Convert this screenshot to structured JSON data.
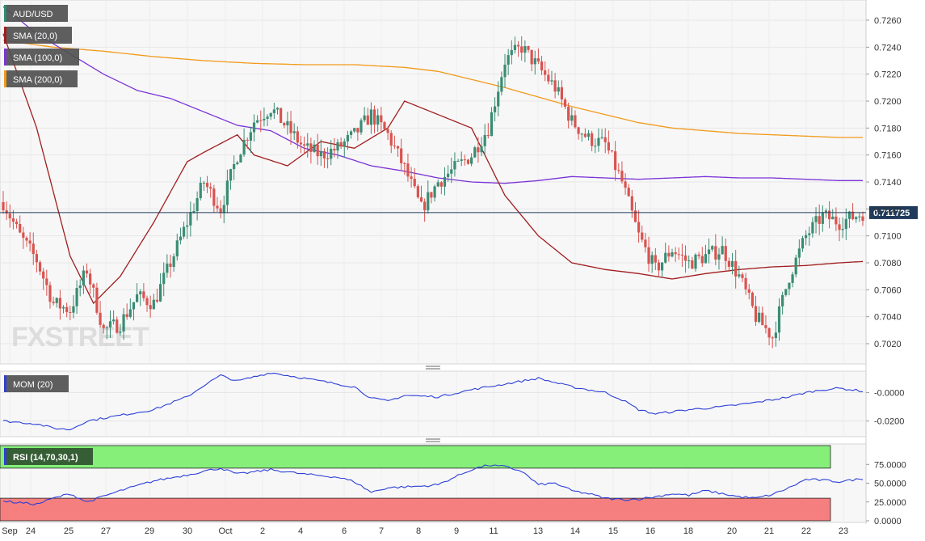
{
  "chart_data": {
    "type": "candlestick",
    "symbol": "AUD/USD",
    "current_price": "0.711725",
    "ylim": [
      0.7005,
      0.7275
    ],
    "y_ticks": [
      "0.7260",
      "0.7240",
      "0.7220",
      "0.7200",
      "0.7180",
      "0.7160",
      "0.7140",
      "0.7120",
      "0.7100",
      "0.7080",
      "0.7060",
      "0.7040",
      "0.7020"
    ],
    "x_ticks": [
      "Sep",
      "24",
      "25",
      "27",
      "29",
      "30",
      "Oct",
      "2",
      "4",
      "6",
      "7",
      "8",
      "9",
      "11",
      "13",
      "14",
      "15",
      "16",
      "18",
      "20",
      "21",
      "22",
      "23"
    ],
    "legend": [
      {
        "label": "AUD/USD",
        "color": "#2e8a73"
      },
      {
        "label": "SMA (20,0)",
        "color": "#a11d1d"
      },
      {
        "label": "SMA (100,0)",
        "color": "#7b33d6"
      },
      {
        "label": "SMA (200,0)",
        "color": "#f29a1b"
      }
    ],
    "colors": {
      "up": "#3a8c72",
      "down": "#d9534f",
      "sma20": "#a11d1d",
      "sma100": "#7b33d6",
      "sma200": "#f29a1b",
      "price_line": "#1f3a5a"
    },
    "close_path": [
      [
        0,
        0.7125
      ],
      [
        5,
        0.71
      ],
      [
        10,
        0.7082
      ],
      [
        15,
        0.705
      ],
      [
        20,
        0.7045
      ],
      [
        25,
        0.7075
      ],
      [
        30,
        0.703
      ],
      [
        35,
        0.7035
      ],
      [
        40,
        0.7055
      ],
      [
        45,
        0.705
      ],
      [
        50,
        0.708
      ],
      [
        55,
        0.711
      ],
      [
        60,
        0.714
      ],
      [
        65,
        0.712
      ],
      [
        70,
        0.716
      ],
      [
        75,
        0.7185
      ],
      [
        80,
        0.7195
      ],
      [
        85,
        0.718
      ],
      [
        90,
        0.7165
      ],
      [
        95,
        0.716
      ],
      [
        100,
        0.7165
      ],
      [
        105,
        0.7175
      ],
      [
        110,
        0.719
      ],
      [
        115,
        0.7175
      ],
      [
        120,
        0.715
      ],
      [
        125,
        0.712
      ],
      [
        130,
        0.714
      ],
      [
        135,
        0.715
      ],
      [
        140,
        0.716
      ],
      [
        145,
        0.718
      ],
      [
        150,
        0.723
      ],
      [
        155,
        0.724
      ],
      [
        160,
        0.7225
      ],
      [
        165,
        0.721
      ],
      [
        170,
        0.7185
      ],
      [
        175,
        0.7172
      ],
      [
        180,
        0.7168
      ],
      [
        185,
        0.714
      ],
      [
        190,
        0.71
      ],
      [
        195,
        0.7075
      ],
      [
        200,
        0.709
      ],
      [
        205,
        0.708
      ],
      [
        210,
        0.7085
      ],
      [
        215,
        0.709
      ],
      [
        220,
        0.707
      ],
      [
        225,
        0.704
      ],
      [
        230,
        0.7025
      ],
      [
        235,
        0.707
      ],
      [
        240,
        0.71
      ],
      [
        245,
        0.7115
      ],
      [
        250,
        0.711
      ],
      [
        255,
        0.7115
      ],
      [
        257,
        0.7117
      ]
    ],
    "sma20_path": [
      [
        0,
        0.725
      ],
      [
        10,
        0.718
      ],
      [
        20,
        0.7085
      ],
      [
        27,
        0.705
      ],
      [
        35,
        0.707
      ],
      [
        45,
        0.711
      ],
      [
        55,
        0.7155
      ],
      [
        60,
        0.7162
      ],
      [
        70,
        0.7175
      ],
      [
        75,
        0.716
      ],
      [
        85,
        0.7152
      ],
      [
        95,
        0.717
      ],
      [
        105,
        0.7165
      ],
      [
        115,
        0.718
      ],
      [
        120,
        0.72
      ],
      [
        130,
        0.719
      ],
      [
        140,
        0.718
      ],
      [
        150,
        0.713
      ],
      [
        160,
        0.71
      ],
      [
        170,
        0.708
      ],
      [
        180,
        0.7075
      ],
      [
        190,
        0.7072
      ],
      [
        200,
        0.7068
      ],
      [
        210,
        0.7072
      ],
      [
        220,
        0.7075
      ],
      [
        230,
        0.7077
      ],
      [
        240,
        0.7078
      ],
      [
        250,
        0.708
      ],
      [
        257,
        0.7081
      ]
    ],
    "sma100_path": [
      [
        0,
        0.727
      ],
      [
        10,
        0.725
      ],
      [
        20,
        0.7235
      ],
      [
        30,
        0.722
      ],
      [
        40,
        0.7208
      ],
      [
        50,
        0.7202
      ],
      [
        60,
        0.7192
      ],
      [
        70,
        0.7182
      ],
      [
        80,
        0.7178
      ],
      [
        90,
        0.7165
      ],
      [
        100,
        0.716
      ],
      [
        110,
        0.7152
      ],
      [
        120,
        0.7148
      ],
      [
        130,
        0.7143
      ],
      [
        140,
        0.714
      ],
      [
        150,
        0.7139
      ],
      [
        160,
        0.7141
      ],
      [
        170,
        0.7144
      ],
      [
        180,
        0.7143
      ],
      [
        190,
        0.7142
      ],
      [
        200,
        0.7143
      ],
      [
        210,
        0.7144
      ],
      [
        220,
        0.7143
      ],
      [
        230,
        0.7143
      ],
      [
        240,
        0.7142
      ],
      [
        250,
        0.7141
      ],
      [
        257,
        0.7141
      ]
    ],
    "sma200_path": [
      [
        0,
        0.7245
      ],
      [
        15,
        0.724
      ],
      [
        30,
        0.7237
      ],
      [
        45,
        0.7233
      ],
      [
        60,
        0.723
      ],
      [
        75,
        0.7228
      ],
      [
        90,
        0.7227
      ],
      [
        105,
        0.7227
      ],
      [
        120,
        0.7225
      ],
      [
        130,
        0.7222
      ],
      [
        140,
        0.7216
      ],
      [
        150,
        0.721
      ],
      [
        160,
        0.7203
      ],
      [
        170,
        0.7196
      ],
      [
        180,
        0.719
      ],
      [
        190,
        0.7184
      ],
      [
        200,
        0.718
      ],
      [
        210,
        0.7178
      ],
      [
        220,
        0.7176
      ],
      [
        230,
        0.7175
      ],
      [
        240,
        0.7174
      ],
      [
        250,
        0.7173
      ],
      [
        257,
        0.7173
      ]
    ],
    "momentum": {
      "label": "MOM (20)",
      "ylim": [
        -0.031,
        0.015
      ],
      "y_ticks": [
        "-0.0000",
        "-0.0200"
      ],
      "values": [
        [
          0,
          -0.02
        ],
        [
          10,
          -0.022
        ],
        [
          15,
          -0.025
        ],
        [
          20,
          -0.026
        ],
        [
          25,
          -0.02
        ],
        [
          35,
          -0.016
        ],
        [
          45,
          -0.012
        ],
        [
          55,
          -0.003
        ],
        [
          60,
          0.005
        ],
        [
          65,
          0.012
        ],
        [
          70,
          0.008
        ],
        [
          80,
          0.014
        ],
        [
          90,
          0.01
        ],
        [
          100,
          0.006
        ],
        [
          105,
          0.004
        ],
        [
          110,
          -0.004
        ],
        [
          115,
          -0.006
        ],
        [
          120,
          -0.002
        ],
        [
          130,
          -0.003
        ],
        [
          140,
          0.002
        ],
        [
          150,
          0.006
        ],
        [
          160,
          0.01
        ],
        [
          170,
          0.004
        ],
        [
          180,
          0.0
        ],
        [
          185,
          -0.005
        ],
        [
          190,
          -0.012
        ],
        [
          195,
          -0.015
        ],
        [
          205,
          -0.012
        ],
        [
          215,
          -0.01
        ],
        [
          225,
          -0.007
        ],
        [
          230,
          -0.005
        ],
        [
          235,
          -0.003
        ],
        [
          240,
          0.0
        ],
        [
          245,
          0.002
        ],
        [
          250,
          0.003
        ],
        [
          257,
          0.001
        ]
      ]
    },
    "rsi": {
      "label": "RSI (14,70,30,1)",
      "ylim": [
        0,
        100
      ],
      "overbought": 70,
      "oversold": 30,
      "y_ticks": [
        "75.0000",
        "50.0000",
        "25.0000",
        "0.0000"
      ],
      "zone_colors": {
        "overbought": "#85ef7a",
        "oversold": "#f47f7e"
      },
      "values": [
        [
          0,
          26
        ],
        [
          10,
          22
        ],
        [
          15,
          30
        ],
        [
          20,
          36
        ],
        [
          25,
          25
        ],
        [
          35,
          40
        ],
        [
          45,
          53
        ],
        [
          55,
          61
        ],
        [
          60,
          66
        ],
        [
          65,
          70
        ],
        [
          70,
          62
        ],
        [
          80,
          68
        ],
        [
          90,
          62
        ],
        [
          100,
          58
        ],
        [
          105,
          52
        ],
        [
          110,
          38
        ],
        [
          115,
          44
        ],
        [
          125,
          46
        ],
        [
          130,
          48
        ],
        [
          140,
          68
        ],
        [
          145,
          74
        ],
        [
          150,
          72
        ],
        [
          155,
          66
        ],
        [
          160,
          48
        ],
        [
          165,
          50
        ],
        [
          170,
          40
        ],
        [
          175,
          36
        ],
        [
          180,
          30
        ],
        [
          185,
          28
        ],
        [
          190,
          29
        ],
        [
          195,
          32
        ],
        [
          200,
          36
        ],
        [
          205,
          34
        ],
        [
          210,
          40
        ],
        [
          215,
          36
        ],
        [
          220,
          32
        ],
        [
          225,
          30
        ],
        [
          230,
          35
        ],
        [
          235,
          44
        ],
        [
          240,
          55
        ],
        [
          245,
          54
        ],
        [
          250,
          52
        ],
        [
          257,
          56
        ]
      ]
    },
    "watermark": "FXSTREET"
  }
}
